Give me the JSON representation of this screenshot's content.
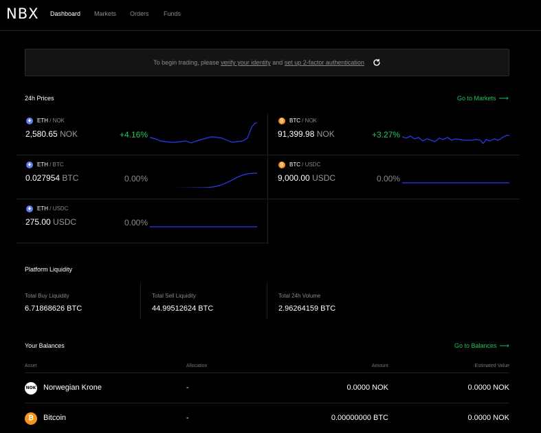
{
  "nav": {
    "logo": "NBX",
    "links": [
      "Dashboard",
      "Markets",
      "Orders",
      "Funds"
    ]
  },
  "banner": {
    "text_before": "To begin trading, please",
    "link1": "verify your identity",
    "text_mid": "and",
    "link2": "set up 2-factor authentication"
  },
  "prices": {
    "title": "24h Prices",
    "link": "Go to Markets",
    "items": [
      {
        "base": "ETH",
        "quote": "/ NOK",
        "value": "2,580.65",
        "unit": "NOK",
        "change": "+4.16%",
        "trend": "up",
        "icon": "ethereum-icon"
      },
      {
        "base": "BTC",
        "quote": "/ NOK",
        "value": "91,399.98",
        "unit": "NOK",
        "change": "+3.27%",
        "trend": "up",
        "icon": "bitcoin-icon"
      },
      {
        "base": "ETH",
        "quote": "/ BTC",
        "value": "0.027954",
        "unit": "BTC",
        "change": "0.00%",
        "trend": "flat",
        "icon": "ethereum-icon"
      },
      {
        "base": "BTC",
        "quote": "/ USDC",
        "value": "9,000.00",
        "unit": "USDC",
        "change": "0.00%",
        "trend": "flat",
        "icon": "bitcoin-icon"
      },
      {
        "base": "ETH",
        "quote": "/ USDC",
        "value": "275.00",
        "unit": "USDC",
        "change": "0.00%",
        "trend": "flat",
        "icon": "ethereum-icon"
      }
    ]
  },
  "liquidity": {
    "title": "Platform Liquidity",
    "items": [
      {
        "label": "Total Buy Liquidity",
        "value": "6.71868626 BTC"
      },
      {
        "label": "Total Sell Liquidity",
        "value": "44.99512624 BTC"
      },
      {
        "label": "Total 24h Volume",
        "value": "2.96264159 BTC"
      }
    ]
  },
  "balances": {
    "title": "Your Balances",
    "link": "Go to Balances",
    "columns": {
      "asset": "Asset",
      "allocation": "Allocation",
      "amount": "Amount",
      "estimated": "Estimated Value"
    },
    "rows": [
      {
        "icon_text": "NOK",
        "name": "Norwegian Krone",
        "allocation": "-",
        "amount": "0.0000 NOK",
        "estimated": "0.0000 NOK"
      },
      {
        "icon_text": "₿",
        "name": "Bitcoin",
        "allocation": "-",
        "amount": "0.00000000 BTC",
        "estimated": "0.0000 NOK"
      }
    ]
  },
  "colors": {
    "accent_green": "#21c45d",
    "spark_blue": "#2b3cff",
    "eth": "#627eea",
    "btc": "#f7931a"
  }
}
